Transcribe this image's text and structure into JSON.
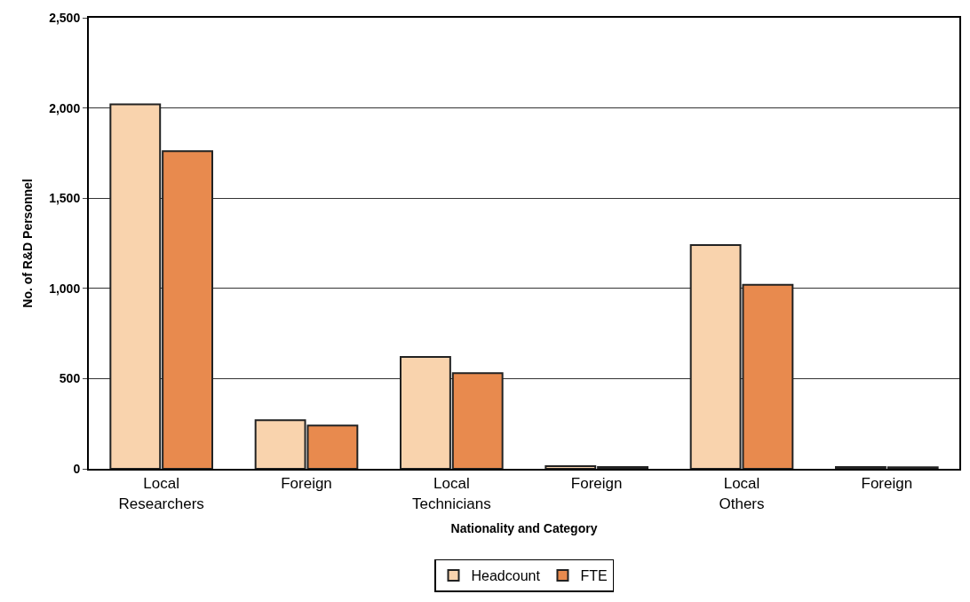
{
  "chart_data": {
    "type": "bar",
    "xlabel": "Nationality and Category",
    "ylabel": "No. of R&D Personnel",
    "categories": [
      "Local\nResearchers",
      "Foreign",
      "Local\nTechnicians",
      "Foreign",
      "Local\nOthers",
      "Foreign"
    ],
    "series": [
      {
        "name": "Headcount",
        "color": "#f9d3ad",
        "values": [
          2020,
          270,
          620,
          15,
          1240,
          10
        ]
      },
      {
        "name": "FTE",
        "color": "#e88a4e",
        "values": [
          1760,
          240,
          530,
          10,
          1020,
          8
        ]
      }
    ],
    "ylim": [
      0,
      2500
    ],
    "yticks": [
      {
        "value": 0,
        "label": "0"
      },
      {
        "value": 500,
        "label": "500"
      },
      {
        "value": 1000,
        "label": "1,000"
      },
      {
        "value": 1500,
        "label": "1,500"
      },
      {
        "value": 2000,
        "label": "2,000"
      },
      {
        "value": 2500,
        "label": "2,500"
      }
    ],
    "grid": "y",
    "legend": "bottom"
  }
}
